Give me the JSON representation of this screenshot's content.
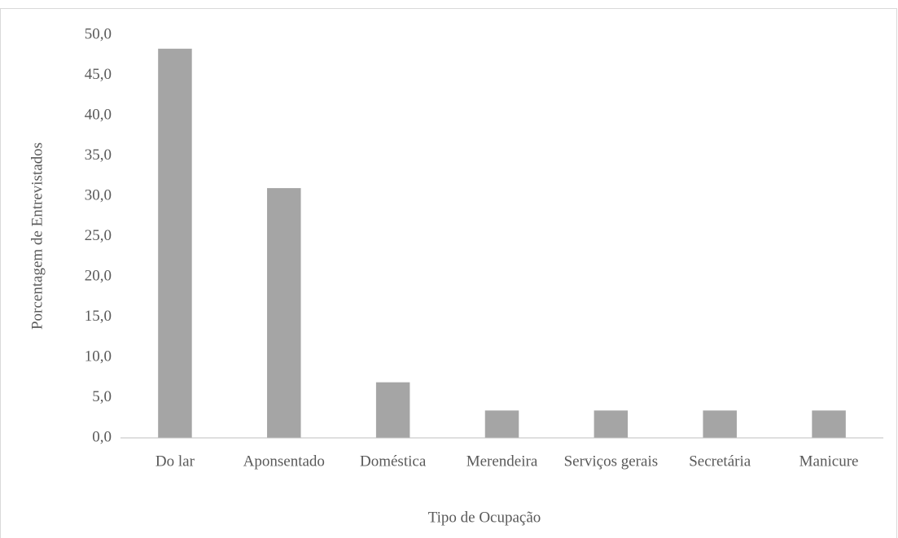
{
  "chart_data": {
    "type": "bar",
    "x_label": "Tipo de Ocupação",
    "y_label": "Porcentagem de Entrevistados",
    "categories": [
      "Do lar",
      "Aponsentado",
      "Doméstica",
      "Merendeira",
      "Serviços gerais",
      "Secretária",
      "Manicure"
    ],
    "values": [
      48.3,
      31.0,
      6.9,
      3.4,
      3.4,
      3.4,
      3.4
    ],
    "color": "#a5a5a5",
    "ylim": [
      0,
      50
    ],
    "yticks": [
      {
        "value": 0,
        "label": "0,0"
      },
      {
        "value": 5,
        "label": "5,0"
      },
      {
        "value": 10,
        "label": "10,0"
      },
      {
        "value": 15,
        "label": "15,0"
      },
      {
        "value": 20,
        "label": "20,0"
      },
      {
        "value": 25,
        "label": "25,0"
      },
      {
        "value": 30,
        "label": "30,0"
      },
      {
        "value": 35,
        "label": "35,0"
      },
      {
        "value": 40,
        "label": "40,0"
      },
      {
        "value": 45,
        "label": "45,0"
      },
      {
        "value": 50,
        "label": "50,0"
      }
    ],
    "grid": false
  }
}
